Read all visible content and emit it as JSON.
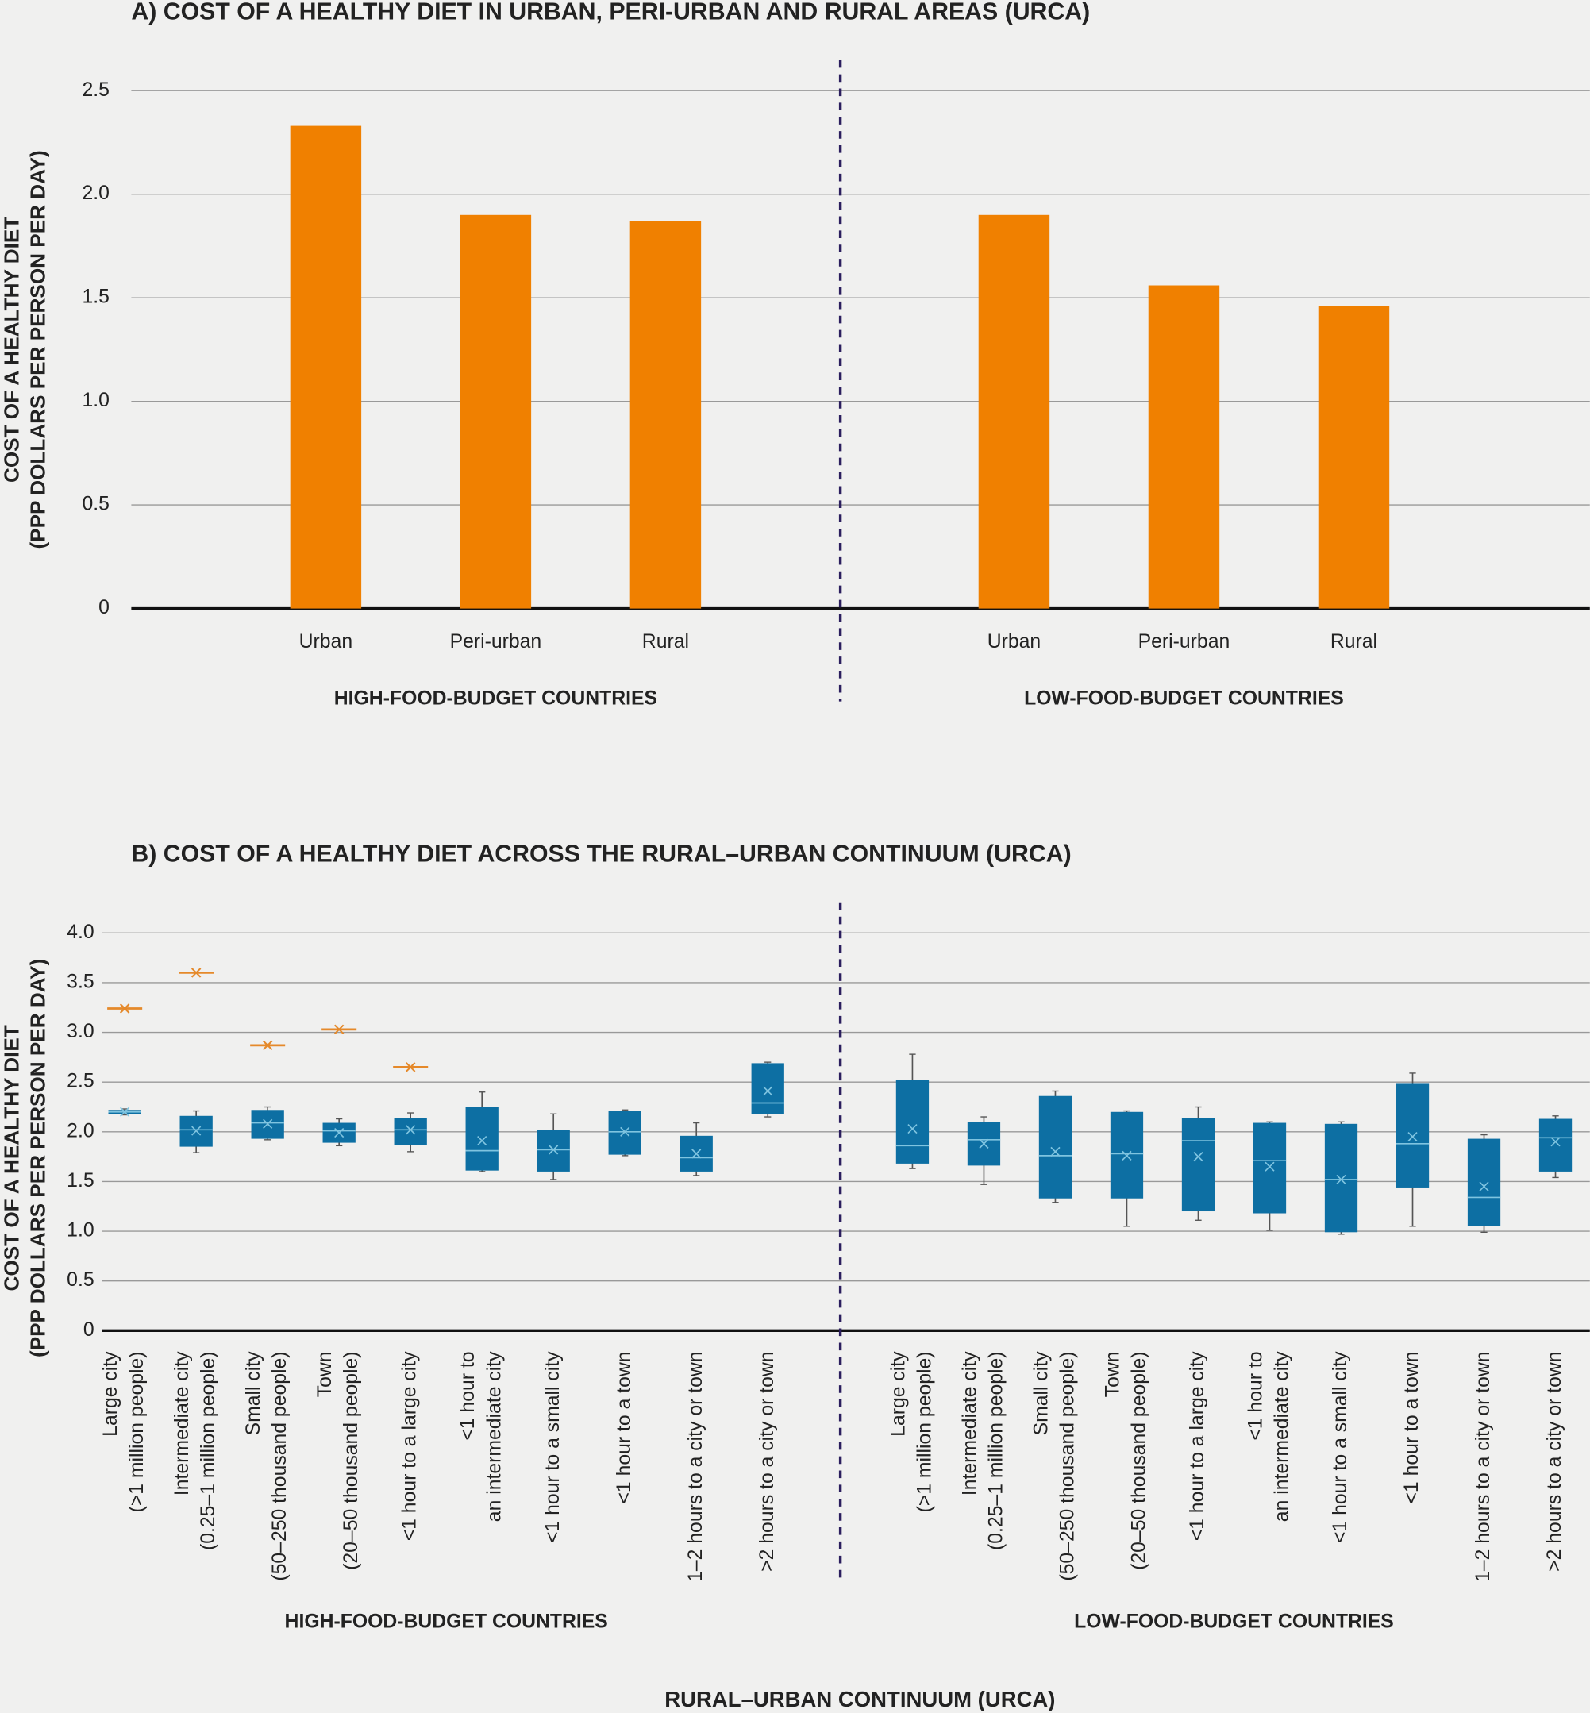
{
  "chart_data": [
    {
      "type": "bar",
      "title": "A) COST OF A HEALTHY DIET IN URBAN, PERI-URBAN AND RURAL AREAS (URCA)",
      "y_label": [
        "COST OF A HEALTHY DIET",
        "(PPP DOLLARS PER PERSON PER DAY)"
      ],
      "ylim": [
        0,
        2.5
      ],
      "yticks": [
        0,
        0.5,
        {
          "value": 1,
          "label": "1.0"
        },
        1.5,
        {
          "value": 2,
          "label": "2.0"
        },
        2.5
      ],
      "grid": true,
      "color": "#f08000",
      "groups": [
        {
          "name": "HIGH-FOOD-BUDGET COUNTRIES",
          "categories": [
            "Urban",
            "Peri-urban",
            "Rural"
          ],
          "values": [
            2.33,
            1.9,
            1.87
          ]
        },
        {
          "name": "LOW-FOOD-BUDGET COUNTRIES",
          "categories": [
            "Urban",
            "Peri-urban",
            "Rural"
          ],
          "values": [
            1.9,
            1.56,
            1.46
          ]
        }
      ]
    },
    {
      "type": "box",
      "title": "B) COST OF A HEALTHY DIET ACROSS THE RURAL–URBAN CONTINUUM (URCA)",
      "y_label": [
        "COST OF A HEALTHY DIET",
        "(PPP DOLLARS PER PERSON PER DAY)"
      ],
      "x_label": "RURAL–URBAN CONTINUUM (URCA)",
      "ylim": [
        0,
        4
      ],
      "yticks": [
        0,
        0.5,
        {
          "value": 1,
          "label": "1.0"
        },
        1.5,
        {
          "value": 2,
          "label": "2.0"
        },
        2.5,
        {
          "value": 3,
          "label": "3.0"
        },
        3.5,
        {
          "value": 4,
          "label": "4.0"
        }
      ],
      "grid": true,
      "color": "#0d6fa3",
      "median_color": "#7fc4e0",
      "marker_color": "#e5892a",
      "groups": [
        {
          "name": "HIGH-FOOD-BUDGET COUNTRIES",
          "categories": [
            [
              "Large city",
              "(>1 million people)"
            ],
            [
              "Intermediate city",
              "(0.25–1 million people)"
            ],
            [
              "Small city",
              "(50–250 thousand people)"
            ],
            [
              "Town",
              "(20–50 thousand people)"
            ],
            [
              "<1 hour to a large city"
            ],
            [
              "<1 hour to",
              "an intermediate city"
            ],
            [
              "<1 hour to a small city"
            ],
            [
              "<1 hour to a town"
            ],
            [
              "1–2 hours to a city or town"
            ],
            [
              ">2 hours to a city or town"
            ]
          ],
          "boxes": [
            {
              "min": 2.17,
              "q1": 2.18,
              "median": 2.2,
              "q3": 2.22,
              "max": 2.23,
              "mean": 2.2
            },
            {
              "min": 1.79,
              "q1": 1.85,
              "median": 2.02,
              "q3": 2.16,
              "max": 2.21,
              "mean": 2.01
            },
            {
              "min": 1.92,
              "q1": 1.93,
              "median": 2.09,
              "q3": 2.22,
              "max": 2.25,
              "mean": 2.08
            },
            {
              "min": 1.86,
              "q1": 1.89,
              "median": 2.01,
              "q3": 2.09,
              "max": 2.13,
              "mean": 1.99
            },
            {
              "min": 1.8,
              "q1": 1.87,
              "median": 2.02,
              "q3": 2.14,
              "max": 2.19,
              "mean": 2.02
            },
            {
              "min": 1.6,
              "q1": 1.61,
              "median": 1.81,
              "q3": 2.25,
              "max": 2.4,
              "mean": 1.91
            },
            {
              "min": 1.52,
              "q1": 1.6,
              "median": 1.82,
              "q3": 2.02,
              "max": 2.18,
              "mean": 1.82
            },
            {
              "min": 1.76,
              "q1": 1.77,
              "median": 2.0,
              "q3": 2.21,
              "max": 2.22,
              "mean": 2.0
            },
            {
              "min": 1.56,
              "q1": 1.6,
              "median": 1.74,
              "q3": 1.96,
              "max": 2.09,
              "mean": 1.78
            },
            {
              "min": 2.15,
              "q1": 2.18,
              "median": 2.29,
              "q3": 2.69,
              "max": 2.7,
              "mean": 2.41
            }
          ],
          "markers": [
            3.24,
            3.6,
            2.87,
            3.03,
            2.65,
            null,
            null,
            null,
            null,
            null
          ]
        },
        {
          "name": "LOW-FOOD-BUDGET COUNTRIES",
          "categories": [
            [
              "Large city",
              "(>1 million people)"
            ],
            [
              "Intermediate city",
              "(0.25–1 million people)"
            ],
            [
              "Small city",
              "(50–250 thousand people)"
            ],
            [
              "Town",
              "(20–50 thousand people)"
            ],
            [
              "<1 hour to a large city"
            ],
            [
              "<1 hour to",
              "an intermediate city"
            ],
            [
              "<1 hour to a small city"
            ],
            [
              "<1 hour to a town"
            ],
            [
              "1–2 hours to a city or town"
            ],
            [
              ">2 hours to a city or town"
            ]
          ],
          "boxes": [
            {
              "min": 1.63,
              "q1": 1.68,
              "median": 1.86,
              "q3": 2.52,
              "max": 2.78,
              "mean": 2.03
            },
            {
              "min": 1.47,
              "q1": 1.66,
              "median": 1.92,
              "q3": 2.1,
              "max": 2.15,
              "mean": 1.88
            },
            {
              "min": 1.29,
              "q1": 1.33,
              "median": 1.76,
              "q3": 2.36,
              "max": 2.41,
              "mean": 1.8
            },
            {
              "min": 1.05,
              "q1": 1.33,
              "median": 1.78,
              "q3": 2.2,
              "max": 2.21,
              "mean": 1.76
            },
            {
              "min": 1.11,
              "q1": 1.2,
              "median": 1.91,
              "q3": 2.14,
              "max": 2.25,
              "mean": 1.75
            },
            {
              "min": 1.01,
              "q1": 1.18,
              "median": 1.71,
              "q3": 2.09,
              "max": 2.1,
              "mean": 1.65
            },
            {
              "min": 0.97,
              "q1": 0.99,
              "median": 1.52,
              "q3": 2.08,
              "max": 2.1,
              "mean": 1.52
            },
            {
              "min": 1.05,
              "q1": 1.44,
              "median": 1.88,
              "q3": 2.49,
              "max": 2.59,
              "mean": 1.95
            },
            {
              "min": 0.99,
              "q1": 1.05,
              "median": 1.34,
              "q3": 1.93,
              "max": 1.97,
              "mean": 1.45
            },
            {
              "min": 1.54,
              "q1": 1.6,
              "median": 1.94,
              "q3": 2.13,
              "max": 2.16,
              "mean": 1.9
            }
          ]
        }
      ]
    }
  ]
}
